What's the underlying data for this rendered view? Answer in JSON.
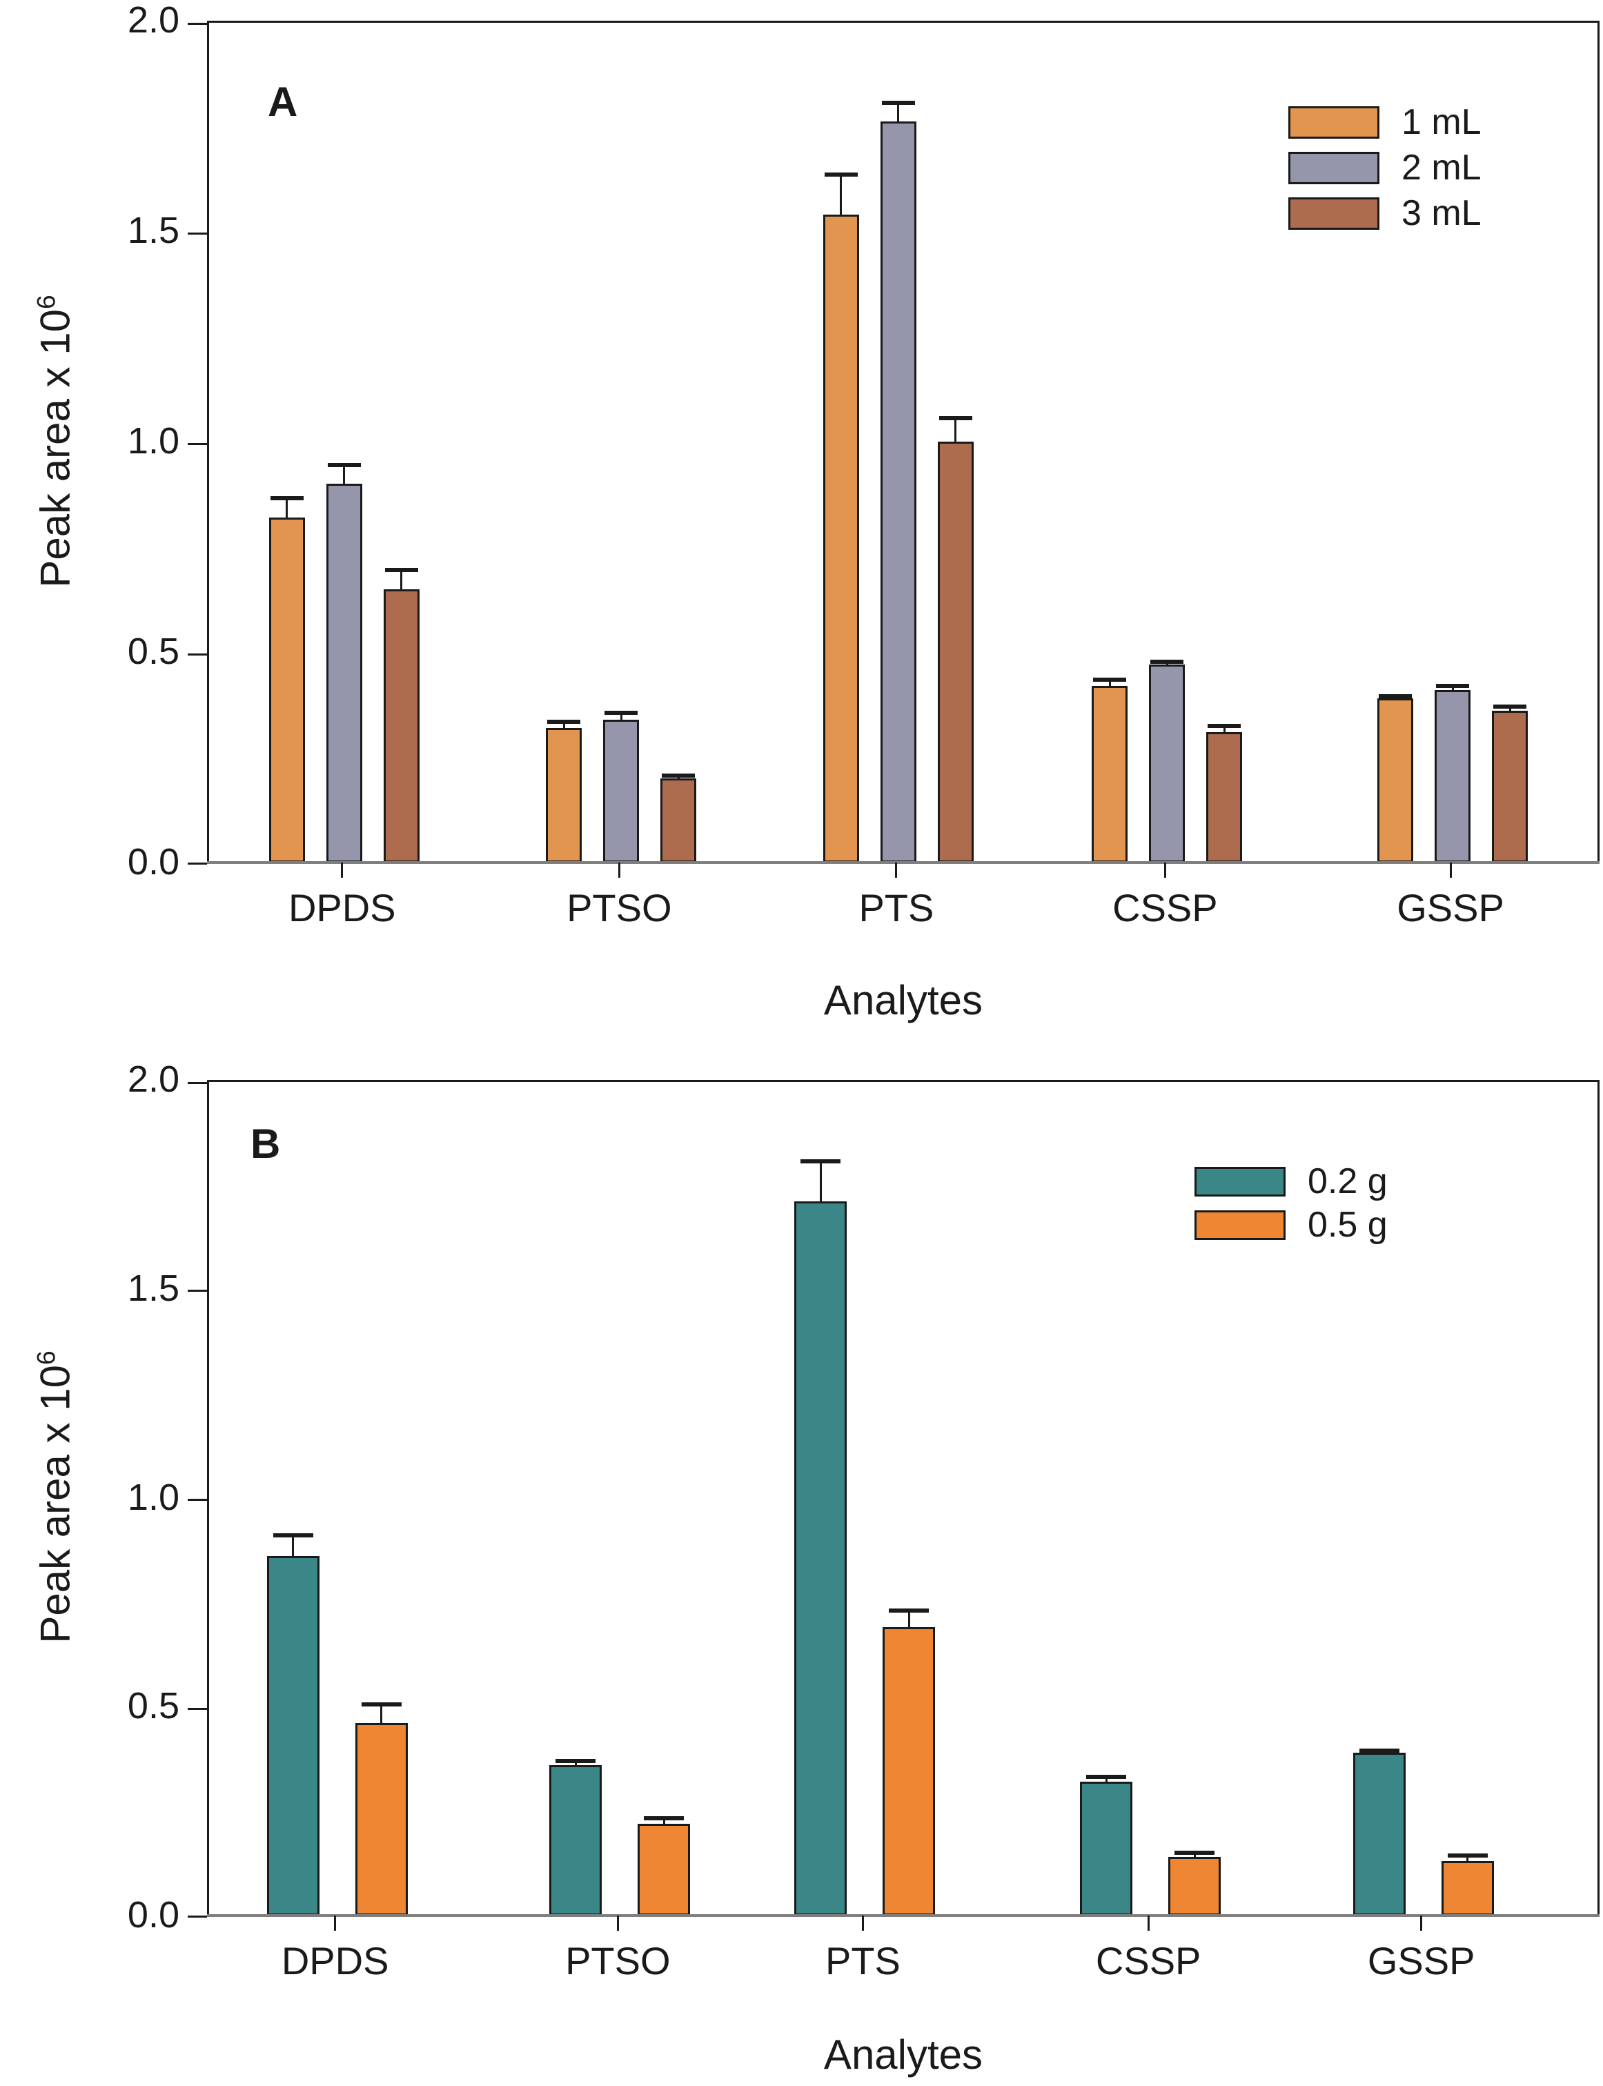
{
  "figure": {
    "y_axis_label_base": "Peak area x 10",
    "y_axis_exponent": "6",
    "x_axis_label": "Analytes"
  },
  "chart_data": [
    {
      "type": "bar",
      "panel_label": "A",
      "xlabel": "Analytes",
      "ylabel": "Peak area x 10^6",
      "ylim": [
        0.0,
        2.0
      ],
      "yticks": [
        0.0,
        0.5,
        1.0,
        1.5,
        2.0
      ],
      "ytick_labels": [
        "0.0",
        "0.5",
        "1.0",
        "1.5",
        "2.0"
      ],
      "grid": false,
      "legend_position": "top-right",
      "categories": [
        "DPDS",
        "PTSO",
        "PTS",
        "CSSP",
        "GSSP"
      ],
      "series": [
        {
          "name": "1 mL",
          "color": "#E2954F",
          "values": [
            0.82,
            0.32,
            1.54,
            0.42,
            0.39
          ],
          "errors": [
            0.05,
            0.02,
            0.1,
            0.02,
            0.01
          ]
        },
        {
          "name": "2 mL",
          "color": "#9596AB",
          "values": [
            0.9,
            0.34,
            1.76,
            0.47,
            0.41
          ],
          "errors": [
            0.05,
            0.02,
            0.05,
            0.012,
            0.015
          ]
        },
        {
          "name": "3 mL",
          "color": "#AC6C4D",
          "values": [
            0.65,
            0.2,
            1.0,
            0.31,
            0.36
          ],
          "errors": [
            0.05,
            0.012,
            0.06,
            0.02,
            0.015
          ]
        }
      ]
    },
    {
      "type": "bar",
      "panel_label": "B",
      "xlabel": "Analytes",
      "ylabel": "Peak area x 10^6",
      "ylim": [
        0.0,
        2.0
      ],
      "yticks": [
        0.0,
        0.5,
        1.0,
        1.5,
        2.0
      ],
      "ytick_labels": [
        "0.0",
        "0.5",
        "1.0",
        "1.5",
        "2.0"
      ],
      "grid": false,
      "legend_position": "top-right",
      "categories": [
        "DPDS",
        "PTSO",
        "PTS",
        "CSSP",
        "GSSP"
      ],
      "series": [
        {
          "name": "0.2 g",
          "color": "#3B8787",
          "values": [
            0.86,
            0.36,
            1.71,
            0.32,
            0.39
          ],
          "errors": [
            0.055,
            0.015,
            0.1,
            0.017,
            0.01
          ]
        },
        {
          "name": "0.5 g",
          "color": "#EE8633",
          "values": [
            0.46,
            0.22,
            0.69,
            0.14,
            0.13
          ],
          "errors": [
            0.05,
            0.018,
            0.045,
            0.016,
            0.018
          ]
        }
      ]
    }
  ]
}
